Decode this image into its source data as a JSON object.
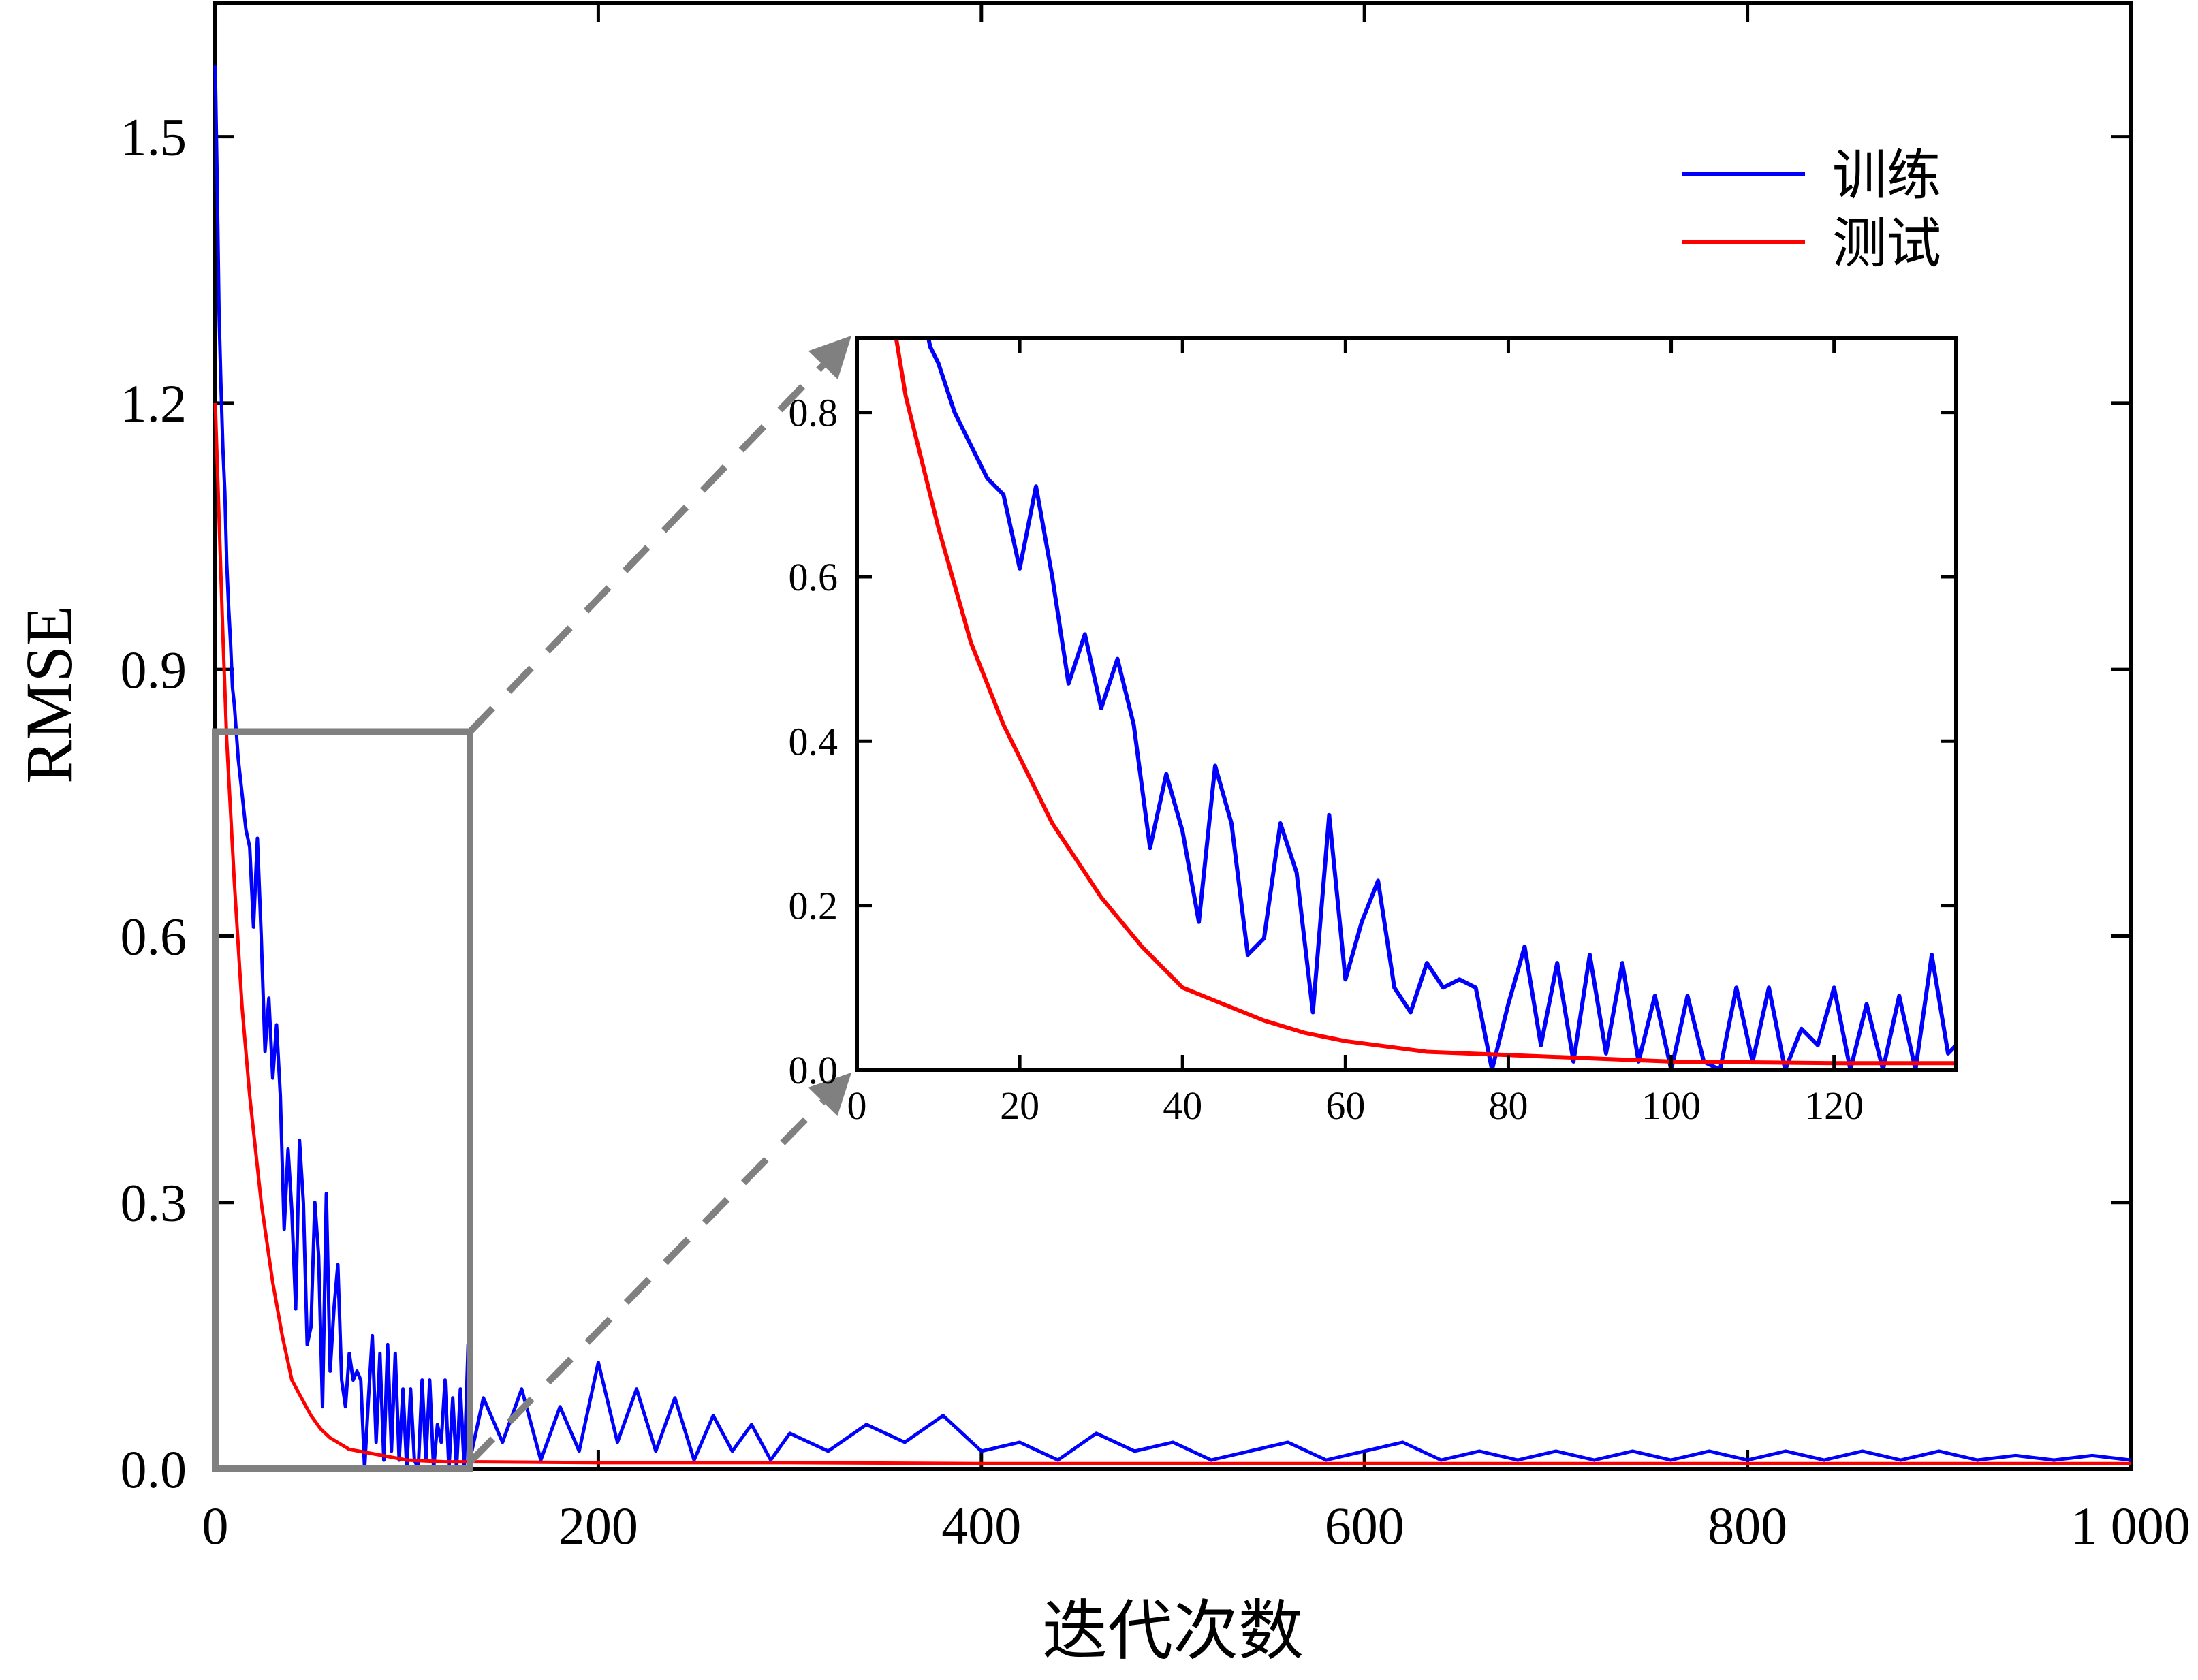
{
  "chart_data": [
    {
      "type": "line",
      "role": "main",
      "xlabel": "迭代次数",
      "ylabel": "RMSE",
      "xlim": [
        0,
        1000
      ],
      "ylim": [
        0,
        1.65
      ],
      "x_ticks": [
        0,
        200,
        400,
        600,
        800,
        1000
      ],
      "x_tick_labels": [
        "0",
        "200",
        "400",
        "600",
        "800",
        "1 000"
      ],
      "y_ticks": [
        0.0,
        0.3,
        0.6,
        0.9,
        1.2,
        1.5
      ],
      "y_tick_labels": [
        "0.0",
        "0.3",
        "0.6",
        "0.9",
        "1.2",
        "1.5"
      ],
      "grid": false,
      "legend_position": "top-right",
      "zoom_box": {
        "x": [
          0,
          133
        ],
        "y": [
          0,
          0.83
        ]
      },
      "series": [
        {
          "name": "训练",
          "color": "#0000ff",
          "x": [
            0,
            1,
            2,
            3,
            4,
            5,
            6,
            7,
            8,
            9,
            10,
            12,
            14,
            16,
            18,
            20,
            22,
            24,
            26,
            28,
            30,
            32,
            34,
            36,
            38,
            40,
            42,
            44,
            46,
            48,
            50,
            52,
            54,
            56,
            58,
            60,
            62,
            64,
            66,
            68,
            70,
            72,
            74,
            76,
            78,
            80,
            82,
            84,
            86,
            88,
            90,
            92,
            94,
            96,
            98,
            100,
            102,
            104,
            106,
            108,
            110,
            112,
            114,
            116,
            118,
            120,
            122,
            124,
            126,
            128,
            130,
            132,
            134,
            140,
            150,
            160,
            170,
            180,
            190,
            200,
            210,
            220,
            230,
            240,
            250,
            260,
            270,
            280,
            290,
            300,
            320,
            340,
            360,
            380,
            400,
            420,
            440,
            460,
            480,
            500,
            520,
            540,
            560,
            580,
            600,
            620,
            640,
            660,
            680,
            700,
            720,
            740,
            760,
            780,
            800,
            820,
            840,
            860,
            880,
            900,
            920,
            940,
            960,
            980,
            1000
          ],
          "y": [
            1.58,
            1.45,
            1.3,
            1.22,
            1.15,
            1.1,
            1.02,
            0.97,
            0.93,
            0.88,
            0.86,
            0.8,
            0.76,
            0.72,
            0.7,
            0.61,
            0.71,
            0.6,
            0.47,
            0.53,
            0.44,
            0.5,
            0.42,
            0.27,
            0.36,
            0.29,
            0.18,
            0.37,
            0.3,
            0.14,
            0.16,
            0.3,
            0.24,
            0.07,
            0.31,
            0.11,
            0.18,
            0.23,
            0.1,
            0.07,
            0.13,
            0.1,
            0.11,
            0.1,
            0.0,
            0.08,
            0.15,
            0.03,
            0.13,
            0.01,
            0.14,
            0.02,
            0.13,
            0.01,
            0.09,
            0.0,
            0.09,
            0.01,
            0.0,
            0.1,
            0.01,
            0.1,
            0.0,
            0.05,
            0.03,
            0.1,
            0.0,
            0.08,
            0.0,
            0.09,
            0.0,
            0.14,
            0.02,
            0.08,
            0.03,
            0.09,
            0.01,
            0.07,
            0.02,
            0.12,
            0.03,
            0.09,
            0.02,
            0.08,
            0.01,
            0.06,
            0.02,
            0.05,
            0.01,
            0.04,
            0.02,
            0.05,
            0.03,
            0.06,
            0.02,
            0.03,
            0.01,
            0.04,
            0.02,
            0.03,
            0.01,
            0.02,
            0.03,
            0.01,
            0.02,
            0.03,
            0.01,
            0.02,
            0.01,
            0.02,
            0.01,
            0.02,
            0.01,
            0.02,
            0.01,
            0.02,
            0.01,
            0.02,
            0.01,
            0.02,
            0.01,
            0.015,
            0.01,
            0.015,
            0.01
          ]
        },
        {
          "name": "测试",
          "color": "#ff0000",
          "x": [
            0,
            2,
            4,
            6,
            8,
            10,
            12,
            14,
            16,
            18,
            20,
            22,
            24,
            26,
            28,
            30,
            35,
            40,
            45,
            50,
            55,
            60,
            70,
            80,
            100,
            120,
            140,
            200,
            300,
            400,
            500,
            600,
            700,
            800,
            900,
            1000
          ],
          "y": [
            1.2,
            1.07,
            0.94,
            0.82,
            0.74,
            0.66,
            0.59,
            0.52,
            0.47,
            0.42,
            0.38,
            0.34,
            0.3,
            0.27,
            0.24,
            0.21,
            0.15,
            0.1,
            0.08,
            0.06,
            0.045,
            0.035,
            0.022,
            0.018,
            0.01,
            0.008,
            0.008,
            0.007,
            0.007,
            0.006,
            0.006,
            0.006,
            0.006,
            0.006,
            0.006,
            0.006
          ]
        }
      ]
    },
    {
      "type": "line",
      "role": "inset",
      "xlim": [
        0,
        135
      ],
      "ylim": [
        0,
        0.89
      ],
      "x_ticks": [
        0,
        20,
        40,
        60,
        80,
        100,
        120
      ],
      "x_tick_labels": [
        "0",
        "20",
        "40",
        "60",
        "80",
        "100",
        "120"
      ],
      "y_ticks": [
        0.0,
        0.2,
        0.4,
        0.6,
        0.8
      ],
      "y_tick_labels": [
        "0.0",
        "0.2",
        "0.4",
        "0.6",
        "0.8"
      ],
      "grid": false
    }
  ],
  "legend": [
    {
      "label": "训练",
      "color": "#0000ff"
    },
    {
      "label": "测试",
      "color": "#ff0000"
    }
  ],
  "colors": {
    "axis": "#000000",
    "zoom_box": "#808080",
    "arrow": "#808080"
  }
}
